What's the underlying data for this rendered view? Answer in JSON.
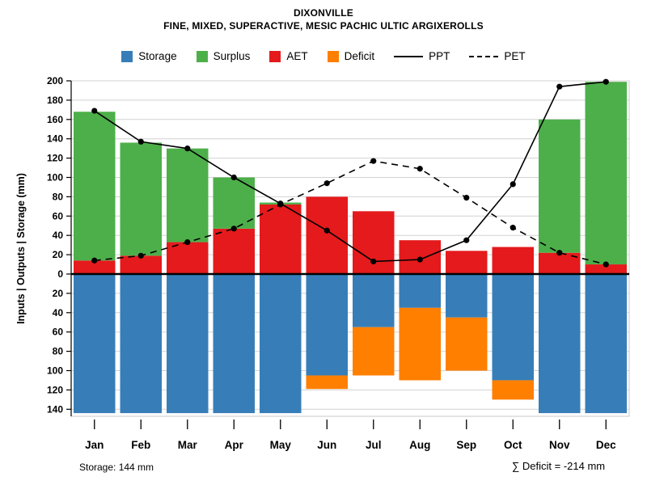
{
  "header": {
    "title": "DIXONVILLE",
    "subtitle": "FINE, MIXED, SUPERACTIVE, MESIC PACHIC ULTIC ARGIXEROLLS"
  },
  "legend": {
    "items": [
      {
        "label": "Storage",
        "color": "#377EB8",
        "type": "swatch"
      },
      {
        "label": "Surplus",
        "color": "#4DAF4A",
        "type": "swatch"
      },
      {
        "label": "AET",
        "color": "#E41A1C",
        "type": "swatch"
      },
      {
        "label": "Deficit",
        "color": "#FF7F00",
        "type": "swatch"
      },
      {
        "label": "PPT",
        "color": "#000000",
        "type": "line-solid"
      },
      {
        "label": "PET",
        "color": "#000000",
        "type": "line-dashed"
      }
    ]
  },
  "footer": {
    "storage_note": "Storage: 144 mm",
    "deficit_note": "∑ Deficit = -214 mm"
  },
  "chart_data": {
    "type": "bar",
    "title": "DIXONVILLE",
    "subtitle": "FINE, MIXED, SUPERACTIVE, MESIC PACHIC ULTIC ARGIXEROLLS",
    "categories": [
      "Jan",
      "Feb",
      "Mar",
      "Apr",
      "May",
      "Jun",
      "Jul",
      "Aug",
      "Sep",
      "Oct",
      "Nov",
      "Dec"
    ],
    "series": [
      {
        "name": "AET",
        "type": "bar",
        "stack": "up",
        "color": "#E41A1C",
        "values": [
          14,
          19,
          33,
          47,
          72,
          80,
          65,
          35,
          24,
          28,
          22,
          10
        ]
      },
      {
        "name": "Surplus",
        "type": "bar",
        "stack": "up",
        "color": "#4DAF4A",
        "values": [
          154,
          117,
          97,
          53,
          2,
          0,
          0,
          0,
          0,
          0,
          138,
          189
        ]
      },
      {
        "name": "Storage",
        "type": "bar",
        "stack": "down",
        "color": "#377EB8",
        "values": [
          144,
          144,
          144,
          144,
          144,
          105,
          55,
          35,
          45,
          110,
          144,
          144
        ]
      },
      {
        "name": "Deficit",
        "type": "bar",
        "stack": "down",
        "color": "#FF7F00",
        "values": [
          0,
          0,
          0,
          0,
          0,
          14,
          50,
          75,
          55,
          20,
          0,
          0
        ]
      },
      {
        "name": "PPT",
        "type": "line",
        "style": "solid",
        "color": "#000000",
        "values": [
          169,
          137,
          130,
          100,
          73,
          45,
          13,
          15,
          35,
          93,
          194,
          199
        ]
      },
      {
        "name": "PET",
        "type": "line",
        "style": "dashed",
        "color": "#000000",
        "values": [
          14,
          19,
          33,
          47,
          72,
          94,
          117,
          109,
          79,
          48,
          22,
          10
        ]
      }
    ],
    "xlabel": "",
    "ylabel": "Inputs | Outputs | Storage (mm)",
    "ylim": [
      -150,
      200
    ],
    "y_axis": {
      "tick_top": 200,
      "tick_bottom": -140,
      "tick_step": 20,
      "labels_absolute": true
    },
    "grid": true,
    "legend_position": "top",
    "annotations": [
      "Storage: 144 mm",
      "∑ Deficit = -214 mm"
    ]
  }
}
